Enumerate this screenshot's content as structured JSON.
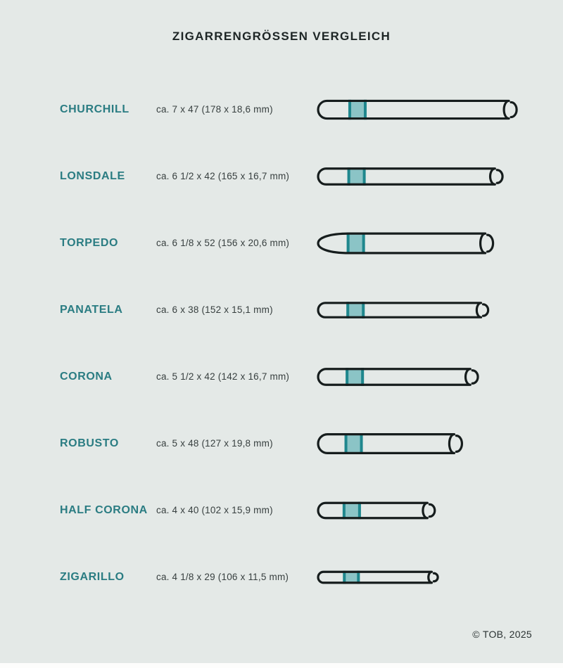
{
  "page": {
    "title": "ZIGARRENGRÖSSEN VERGLEICH",
    "footer": "© TOB, 2025",
    "colors": {
      "background": "#e4e9e7",
      "title": "#1d2525",
      "name": "#2a7c82",
      "dims": "#373f3f",
      "footer": "#2b3333",
      "outline": "#161d1d",
      "band_fill": "#8bc4c6",
      "band_edge": "#1f878d"
    }
  },
  "cigars": [
    {
      "name": "CHURCHILL",
      "dims": "ca. 7 x 47 (178 x 18,6 mm)",
      "length_mm": 178,
      "diameter_mm": 18.6,
      "shape": "round"
    },
    {
      "name": "LONSDALE",
      "dims": "ca. 6 1/2 x 42 (165 x 16,7 mm)",
      "length_mm": 165,
      "diameter_mm": 16.7,
      "shape": "round"
    },
    {
      "name": "TORPEDO",
      "dims": "ca. 6 1/8 x 52 (156 x 20,6 mm)",
      "length_mm": 156,
      "diameter_mm": 20.6,
      "shape": "torpedo"
    },
    {
      "name": "PANATELA",
      "dims": "ca. 6 x 38 (152 x 15,1 mm)",
      "length_mm": 152,
      "diameter_mm": 15.1,
      "shape": "round"
    },
    {
      "name": "CORONA",
      "dims": "ca. 5 1/2 x 42 (142 x 16,7 mm)",
      "length_mm": 142,
      "diameter_mm": 16.7,
      "shape": "round"
    },
    {
      "name": "ROBUSTO",
      "dims": "ca. 5 x 48 (127 x 19,8 mm)",
      "length_mm": 127,
      "diameter_mm": 19.8,
      "shape": "round"
    },
    {
      "name": "HALF CORONA",
      "dims": "ca. 4 x 40 (102 x 15,9 mm)",
      "length_mm": 102,
      "diameter_mm": 15.9,
      "shape": "round"
    },
    {
      "name": "ZIGARILLO",
      "dims": "ca. 4 1/8 x 29 (106 x 11,5 mm)",
      "length_mm": 106,
      "diameter_mm": 11.5,
      "shape": "round"
    }
  ]
}
